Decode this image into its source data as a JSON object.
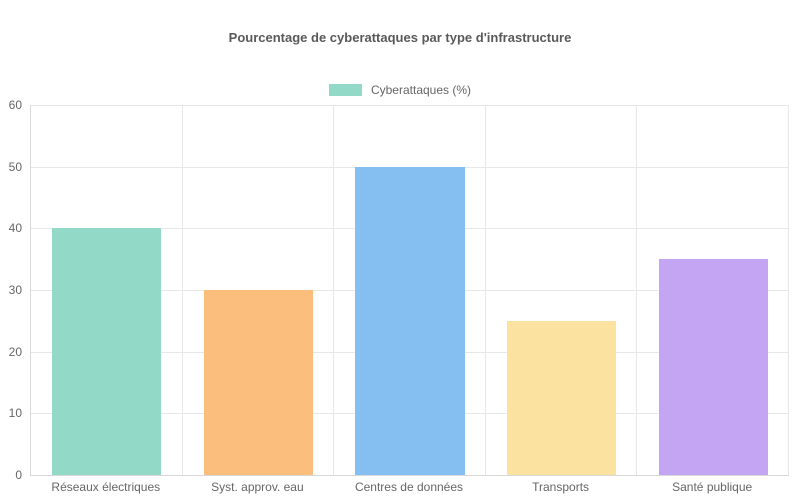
{
  "chart_data": {
    "type": "bar",
    "title": "Pourcentage de cyberattaques par type d'infrastructure",
    "categories": [
      "Réseaux électriques",
      "Syst. approv. eau",
      "Centres de données",
      "Transports",
      "Santé publique"
    ],
    "values": [
      40,
      30,
      50,
      25,
      35
    ],
    "series": [
      {
        "name": "Cyberattaques (%)",
        "values": [
          40,
          30,
          50,
          25,
          35
        ]
      }
    ],
    "xlabel": "",
    "ylabel": "",
    "ylim": [
      0,
      60
    ],
    "yticks": [
      0,
      10,
      20,
      30,
      40,
      50,
      60
    ],
    "grid": true,
    "legend_position": "top",
    "legend_swatch_color": "#92D9C8",
    "bar_colors": [
      "#92D9C8",
      "#FBBE7D",
      "#85BEF0",
      "#FCE2A0",
      "#C4A5F3"
    ],
    "text_color": "#666666",
    "grid_color": "#e7e7e7",
    "background_color": "#ffffff"
  }
}
